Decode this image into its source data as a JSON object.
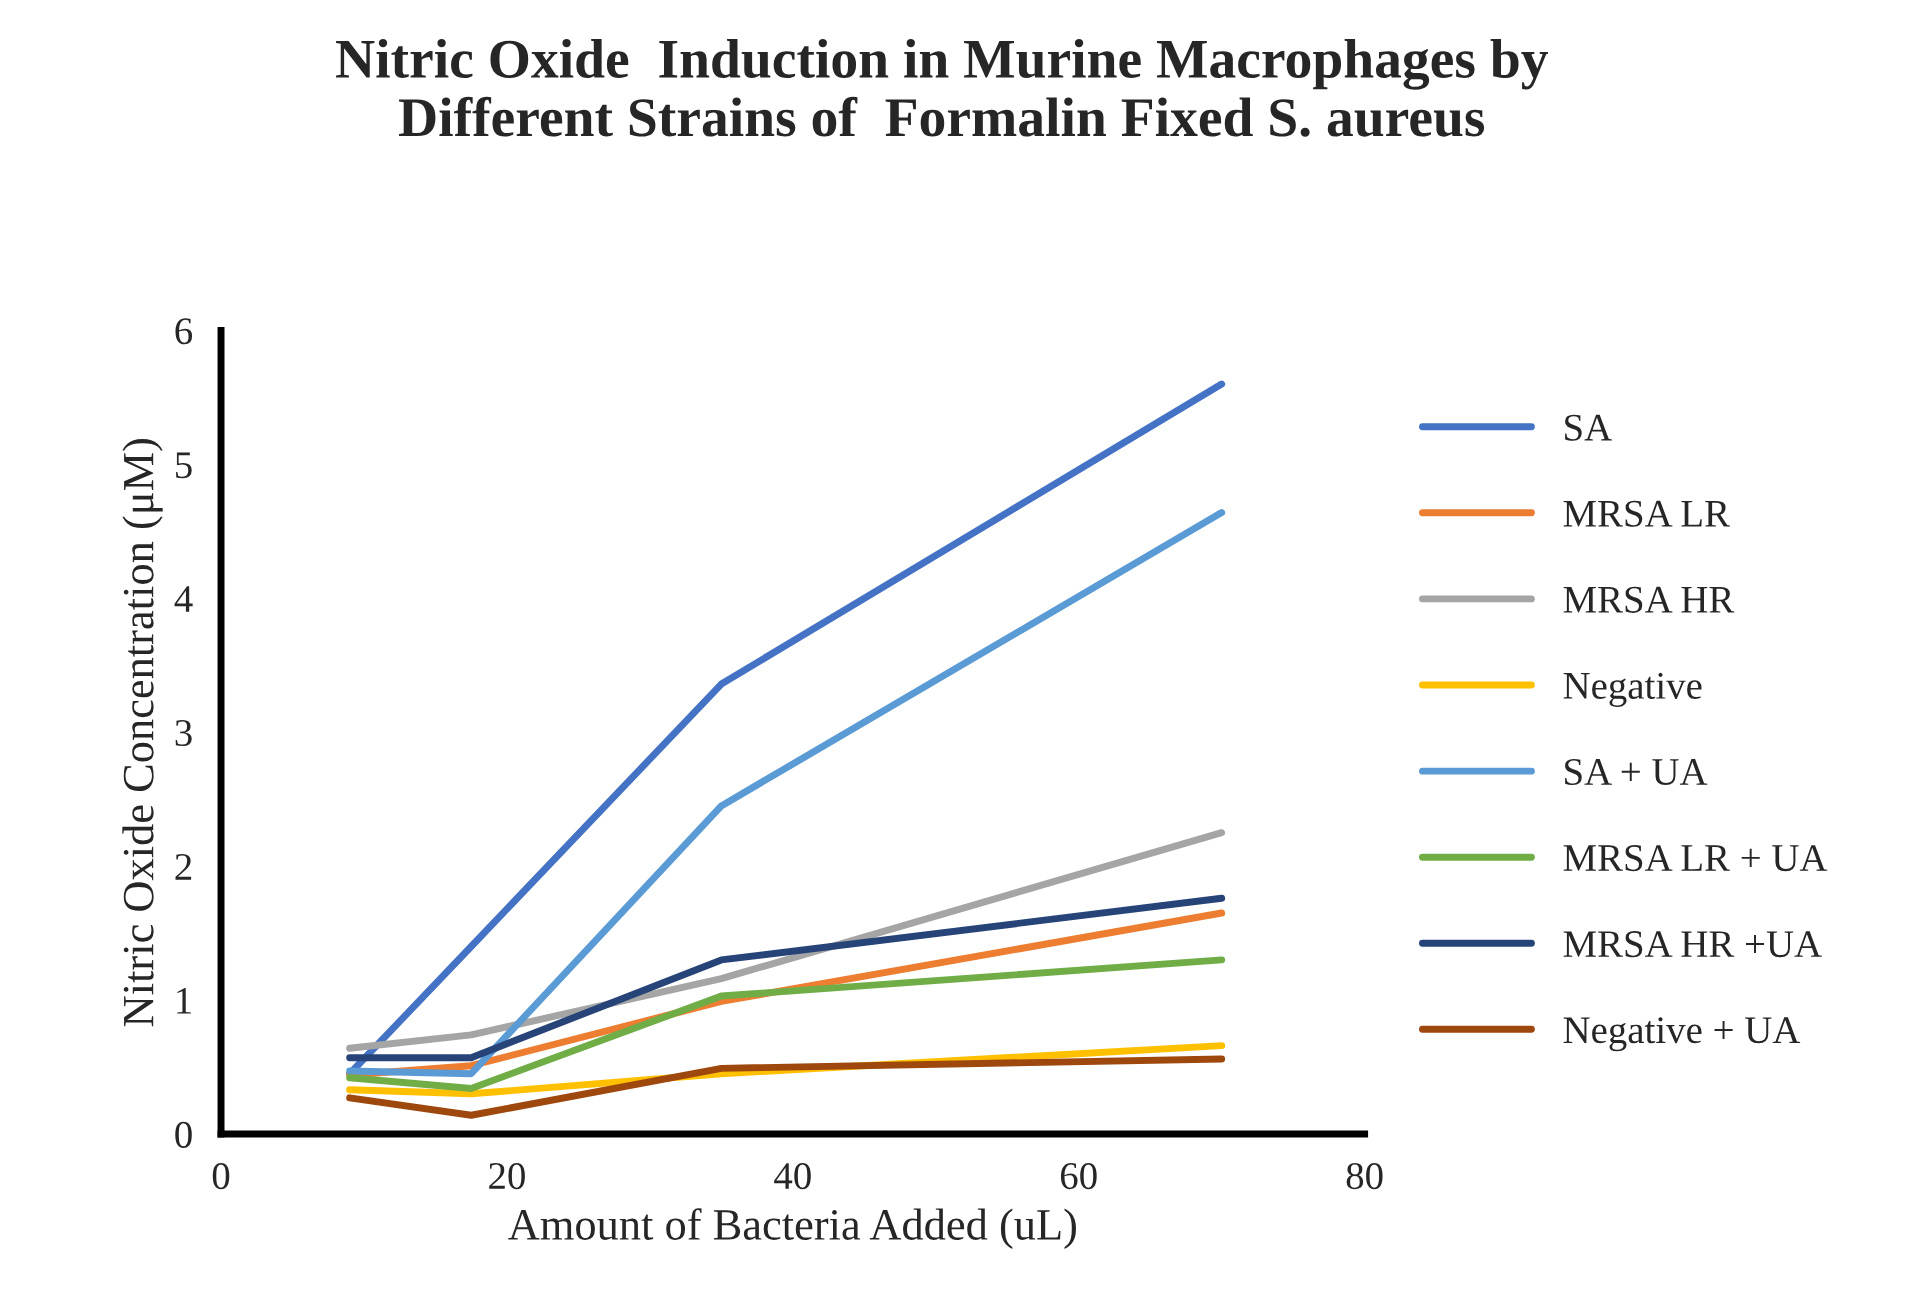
{
  "chart_data": {
    "type": "line",
    "title": "Nitric Oxide  Induction in Murine Macrophages by\nDifferent Strains of  Formalin Fixed S. aureus",
    "xlabel": "Amount of Bacteria Added (uL)",
    "ylabel": "Nitric Oxide Concentration (μM)",
    "x": [
      9,
      17.5,
      35,
      70
    ],
    "series": [
      {
        "name": "SA",
        "color": "#4472c4",
        "values": [
          0.45,
          1.4,
          3.36,
          5.6
        ]
      },
      {
        "name": "MRSA LR",
        "color": "#ed7d31",
        "values": [
          0.44,
          0.51,
          0.99,
          1.65
        ]
      },
      {
        "name": "MRSA HR",
        "color": "#a5a5a5",
        "values": [
          0.64,
          0.74,
          1.16,
          2.25
        ]
      },
      {
        "name": "Negative",
        "color": "#ffc000",
        "values": [
          0.33,
          0.3,
          0.45,
          0.66
        ]
      },
      {
        "name": "SA + UA",
        "color": "#5b9bd5",
        "values": [
          0.47,
          0.45,
          2.45,
          4.64
        ]
      },
      {
        "name": "MRSA LR + UA",
        "color": "#70ad47",
        "values": [
          0.42,
          0.34,
          1.03,
          1.3
        ]
      },
      {
        "name": "MRSA HR +UA",
        "color": "#264478",
        "values": [
          0.57,
          0.57,
          1.3,
          1.76
        ]
      },
      {
        "name": "Negative + UA",
        "color": "#9e480e",
        "values": [
          0.27,
          0.14,
          0.49,
          0.56
        ]
      }
    ],
    "xlim": [
      0,
      80
    ],
    "xticks": [
      0,
      20,
      40,
      60,
      80
    ],
    "ylim": [
      0,
      6
    ],
    "yticks": [
      0,
      1,
      2,
      3,
      4,
      5,
      6
    ],
    "grid": false,
    "legend": "right",
    "marker": "none",
    "line_style": "solid"
  }
}
